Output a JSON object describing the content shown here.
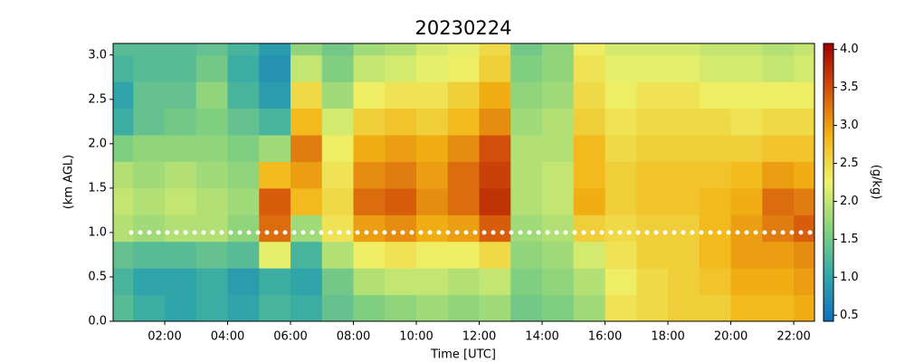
{
  "chart_data": {
    "type": "heatmap",
    "title": "20230224",
    "x_label": "Time [UTC]",
    "y_label": "(km AGL)",
    "colorbar_label": "(g/kg)",
    "x": [
      0.5,
      1.5,
      2.5,
      3.5,
      4.5,
      5.5,
      6.5,
      7.5,
      8.5,
      9.5,
      10.5,
      11.5,
      12.5,
      13.5,
      14.5,
      15.5,
      16.5,
      17.5,
      18.5,
      19.5,
      20.5,
      21.5,
      22.5
    ],
    "y": [
      0.15,
      0.45,
      0.75,
      1.05,
      1.35,
      1.65,
      1.95,
      2.25,
      2.55,
      2.85,
      3.15
    ],
    "z": [
      [
        1.3,
        1.1,
        1.0,
        1.1,
        1.0,
        1.2,
        1.1,
        1.4,
        1.6,
        1.7,
        1.8,
        1.7,
        1.8,
        1.5,
        1.6,
        1.8,
        2.4,
        2.5,
        2.6,
        2.6,
        2.8,
        2.8,
        2.9
      ],
      [
        1.2,
        1.0,
        1.0,
        1.1,
        0.9,
        1.1,
        1.0,
        1.5,
        1.9,
        2.0,
        2.0,
        1.9,
        2.0,
        1.6,
        1.7,
        1.9,
        2.3,
        2.5,
        2.6,
        2.7,
        2.9,
        2.9,
        3.0
      ],
      [
        1.4,
        1.3,
        1.3,
        1.4,
        1.3,
        2.2,
        1.2,
        1.9,
        2.3,
        2.4,
        2.3,
        2.3,
        2.5,
        1.7,
        1.8,
        2.1,
        2.4,
        2.6,
        2.6,
        2.8,
        3.0,
        3.0,
        3.1
      ],
      [
        1.9,
        1.8,
        1.9,
        1.9,
        1.7,
        3.3,
        1.8,
        2.4,
        3.0,
        3.1,
        2.9,
        3.0,
        3.4,
        1.8,
        1.9,
        2.6,
        2.5,
        2.6,
        2.6,
        2.8,
        3.0,
        3.2,
        3.4
      ],
      [
        2.0,
        1.9,
        2.0,
        1.9,
        1.8,
        3.4,
        2.8,
        2.5,
        3.3,
        3.4,
        3.1,
        3.3,
        3.7,
        1.9,
        2.0,
        2.9,
        2.6,
        2.7,
        2.7,
        2.8,
        2.9,
        3.3,
        3.2
      ],
      [
        1.9,
        1.8,
        1.9,
        1.8,
        1.7,
        2.8,
        3.0,
        2.4,
        3.1,
        3.2,
        3.0,
        3.3,
        3.6,
        1.9,
        2.0,
        2.8,
        2.6,
        2.7,
        2.7,
        2.7,
        2.8,
        3.0,
        2.9
      ],
      [
        1.6,
        1.7,
        1.7,
        1.7,
        1.6,
        1.8,
        3.2,
        2.3,
        2.9,
        3.0,
        2.9,
        3.1,
        3.5,
        1.9,
        1.9,
        2.8,
        2.5,
        2.6,
        2.6,
        2.6,
        2.6,
        2.7,
        2.7
      ],
      [
        1.1,
        1.4,
        1.5,
        1.6,
        1.4,
        1.2,
        2.8,
        2.1,
        2.6,
        2.7,
        2.6,
        2.8,
        3.1,
        1.8,
        1.9,
        2.6,
        2.4,
        2.5,
        2.5,
        2.5,
        2.4,
        2.5,
        2.5
      ],
      [
        1.0,
        1.4,
        1.4,
        1.7,
        1.2,
        0.9,
        2.5,
        1.8,
        2.3,
        2.4,
        2.4,
        2.6,
        2.9,
        1.7,
        1.8,
        2.5,
        2.3,
        2.4,
        2.4,
        2.3,
        2.3,
        2.3,
        2.3
      ],
      [
        1.2,
        1.3,
        1.3,
        1.5,
        1.1,
        0.8,
        2.0,
        1.6,
        2.0,
        2.1,
        2.2,
        2.3,
        2.6,
        1.6,
        1.7,
        2.4,
        2.2,
        2.2,
        2.2,
        2.1,
        2.1,
        2.0,
        2.1
      ],
      [
        1.3,
        1.3,
        1.3,
        1.4,
        1.2,
        0.9,
        1.7,
        1.5,
        1.8,
        1.9,
        2.1,
        2.2,
        2.5,
        1.5,
        1.7,
        2.3,
        2.1,
        2.1,
        2.1,
        2.0,
        2.0,
        1.9,
        2.0
      ]
    ],
    "xlim": [
      0.36,
      22.66
    ],
    "xticks": [
      {
        "value": 2,
        "label": "02:00"
      },
      {
        "value": 4,
        "label": "04:00"
      },
      {
        "value": 6,
        "label": "06:00"
      },
      {
        "value": 8,
        "label": "08:00"
      },
      {
        "value": 10,
        "label": "10:00"
      },
      {
        "value": 12,
        "label": "12:00"
      },
      {
        "value": 14,
        "label": "14:00"
      },
      {
        "value": 16,
        "label": "16:00"
      },
      {
        "value": 18,
        "label": "18:00"
      },
      {
        "value": 20,
        "label": "20:00"
      },
      {
        "value": 22,
        "label": "22:00"
      }
    ],
    "ylim": [
      0,
      3.13
    ],
    "yticks": [
      {
        "value": 0,
        "label": "0.0"
      },
      0.5,
      {
        "value": 1,
        "label": "1.0"
      },
      1.5,
      {
        "value": 2,
        "label": "2.0"
      },
      2.5,
      {
        "value": 3,
        "label": "3.0"
      }
    ],
    "clim": [
      0.42,
      4.08
    ],
    "cticks": [
      0.5,
      {
        "value": 1,
        "label": "1.0"
      },
      1.5,
      {
        "value": 2,
        "label": "2.0"
      },
      2.5,
      {
        "value": 3,
        "label": "3.0"
      },
      3.5,
      {
        "value": 4,
        "label": "4.0"
      }
    ],
    "colormap": [
      "#0f6fbf",
      "#32a8a8",
      "#86d27e",
      "#eef26a",
      "#f2b414",
      "#d4520c",
      "#a00000"
    ],
    "reference_line": {
      "y": 1.0,
      "color": "#ffffff"
    }
  }
}
